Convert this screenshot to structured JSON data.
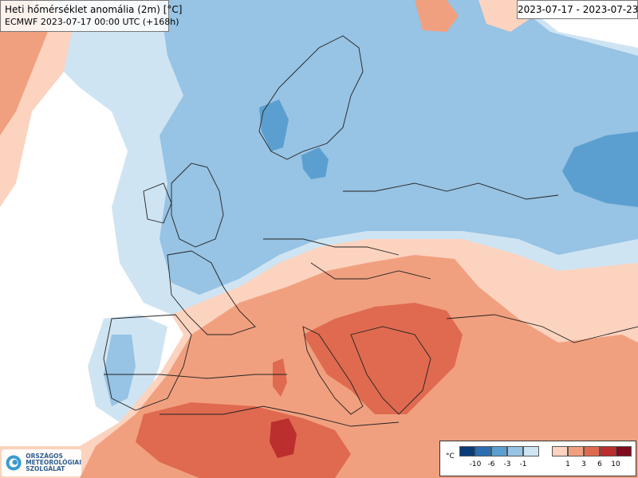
{
  "map": {
    "title": "Heti hőmérséklet anomália (2m) [°C]",
    "model_run": "ECMWF 2023-07-17 00:00 UTC (+168h)",
    "period": "2023-07-17 - 2023-07-23"
  },
  "logo": {
    "line1": "ORSZÁGOS",
    "line2": "METEOROLÓGIAI",
    "line3": "SZOLGÁLAT"
  },
  "legend": {
    "unit": "°C",
    "cold_ticks": [
      "-10",
      "-6",
      "-3",
      "-1"
    ],
    "warm_ticks": [
      "1",
      "3",
      "6",
      "10"
    ],
    "colors": {
      "c10": "#0b3c7a",
      "c6": "#2b6fb2",
      "c3": "#5b9fd0",
      "c1": "#97c3e4",
      "c0": "#cfe4f2",
      "w0": "#fbd3bf",
      "w1": "#f1a07f",
      "w3": "#df6a50",
      "w6": "#bc2f2f",
      "w10": "#7e0c1d"
    }
  }
}
